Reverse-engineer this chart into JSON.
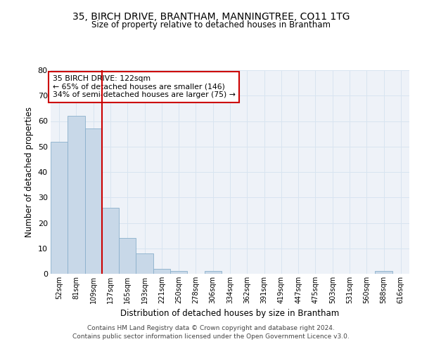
{
  "title1": "35, BIRCH DRIVE, BRANTHAM, MANNINGTREE, CO11 1TG",
  "title2": "Size of property relative to detached houses in Brantham",
  "xlabel": "Distribution of detached houses by size in Brantham",
  "ylabel": "Number of detached properties",
  "bin_labels": [
    "52sqm",
    "81sqm",
    "109sqm",
    "137sqm",
    "165sqm",
    "193sqm",
    "221sqm",
    "250sqm",
    "278sqm",
    "306sqm",
    "334sqm",
    "362sqm",
    "391sqm",
    "419sqm",
    "447sqm",
    "475sqm",
    "503sqm",
    "531sqm",
    "560sqm",
    "588sqm",
    "616sqm"
  ],
  "bar_heights": [
    52,
    62,
    57,
    26,
    14,
    8,
    2,
    1,
    0,
    1,
    0,
    0,
    0,
    0,
    0,
    0,
    0,
    0,
    0,
    1,
    0
  ],
  "bar_color": "#c8d8e8",
  "bar_edge_color": "#8ab0cc",
  "vline_x": 2.5,
  "vline_color": "#cc0000",
  "annotation_text": "35 BIRCH DRIVE: 122sqm\n← 65% of detached houses are smaller (146)\n34% of semi-detached houses are larger (75) →",
  "annotation_box_color": "#cc0000",
  "grid_color": "#d8e4f0",
  "background_color": "#eef2f8",
  "ylim": [
    0,
    80
  ],
  "yticks": [
    0,
    10,
    20,
    30,
    40,
    50,
    60,
    70,
    80
  ],
  "footnote1": "Contains HM Land Registry data © Crown copyright and database right 2024.",
  "footnote2": "Contains public sector information licensed under the Open Government Licence v3.0."
}
